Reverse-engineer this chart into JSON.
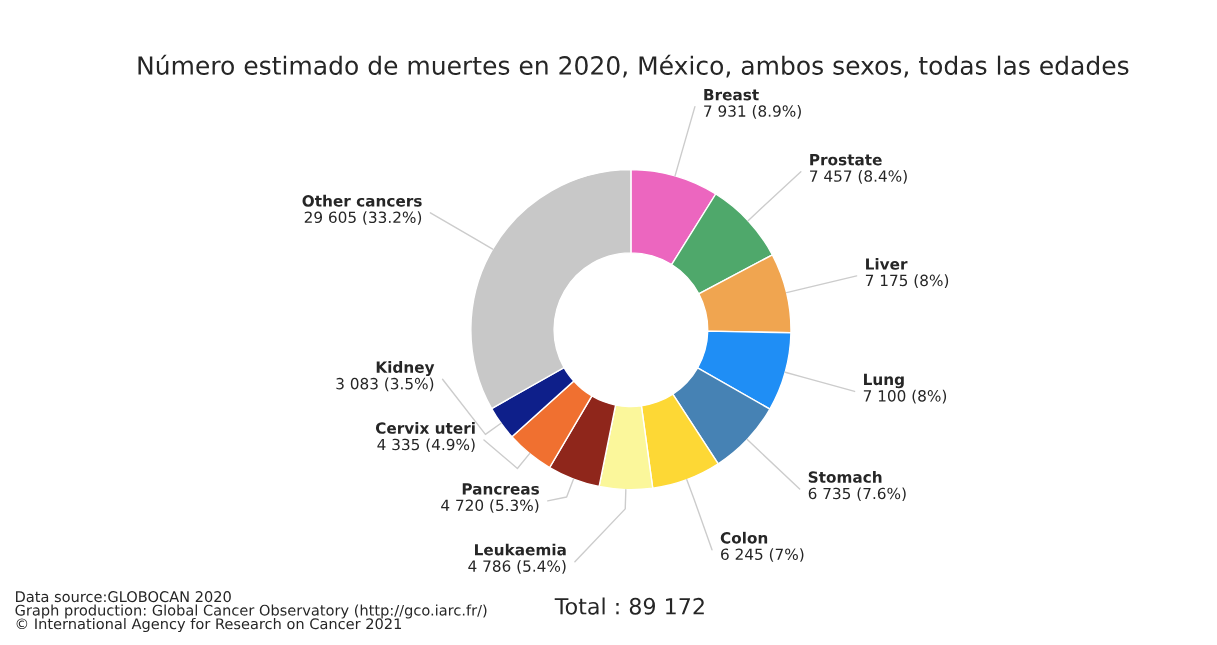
{
  "chart_data": {
    "type": "donut",
    "title": "Número estimado de muertes en 2020, México, ambos sexos, todas las edades",
    "categories": [
      "Breast",
      "Prostate",
      "Liver",
      "Lung",
      "Stomach",
      "Colon",
      "Leukaemia",
      "Pancreas",
      "Cervix uteri",
      "Kidney",
      "Other cancers"
    ],
    "values": [
      7931,
      7457,
      7175,
      7100,
      6735,
      6245,
      4786,
      4720,
      4335,
      3083,
      29605
    ],
    "value_labels": [
      "7 931 (8.9%)",
      "7 457 (8.4%)",
      "7 175 (8%)",
      "7 100 (8%)",
      "6 735 (7.6%)",
      "6 245 (7%)",
      "4 786 (5.4%)",
      "4 720 (5.3%)",
      "4 335 (4.9%)",
      "3 083 (3.5%)",
      "29 605 (33.2%)"
    ],
    "colors": [
      "#ec66bf",
      "#4fa86b",
      "#f0a550",
      "#1f8ef5",
      "#4682b4",
      "#fdd835",
      "#fbf79b",
      "#8f261b",
      "#f07030",
      "#0e1f8a",
      "#c8c8c8"
    ],
    "annotations": [
      "Total : 89 172",
      "Data source:GLOBOCAN 2020\nGraph production: Global Cancer Observatory (http://gco.iarc.fr/)\n© International Agency for Research on Cancer 2021"
    ]
  }
}
